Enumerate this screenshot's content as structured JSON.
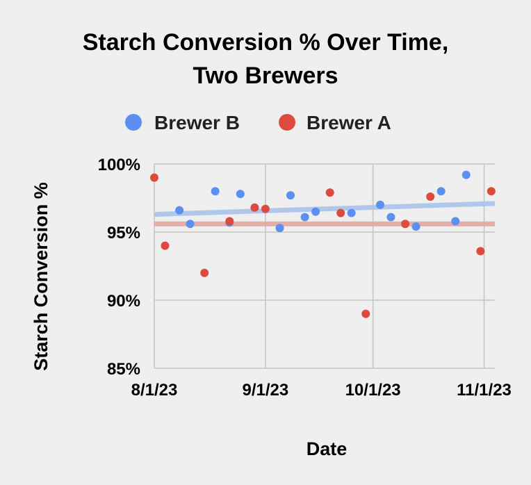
{
  "chart_data": {
    "type": "scatter",
    "title_lines": [
      "Starch Conversion % Over Time,",
      "Two Brewers"
    ],
    "xlabel": "Date",
    "ylabel": "Starch Conversion %",
    "xlim": [
      "2023-08-01",
      "2023-11-04"
    ],
    "ylim": [
      85,
      100
    ],
    "x_ticks": [
      {
        "date": "2023-08-01",
        "label": "8/1/23"
      },
      {
        "date": "2023-09-01",
        "label": "9/1/23"
      },
      {
        "date": "2023-10-01",
        "label": "10/1/23"
      },
      {
        "date": "2023-11-01",
        "label": "11/1/23"
      }
    ],
    "y_ticks": [
      {
        "value": 100,
        "label": "100%"
      },
      {
        "value": 95,
        "label": "95%"
      },
      {
        "value": 90,
        "label": "90%"
      },
      {
        "value": 85,
        "label": "85%"
      }
    ],
    "grid": true,
    "legend_position": "top",
    "series": [
      {
        "name": "Brewer B",
        "color": "#5b8ff0",
        "trendline_color": "#aac3ec",
        "trendline": [
          {
            "x": "2023-08-01",
            "y": 96.3
          },
          {
            "x": "2023-11-04",
            "y": 97.1
          }
        ],
        "points": [
          {
            "x": "2023-08-08",
            "y": 96.6
          },
          {
            "x": "2023-08-11",
            "y": 95.6
          },
          {
            "x": "2023-08-18",
            "y": 98.0
          },
          {
            "x": "2023-08-22",
            "y": 95.7
          },
          {
            "x": "2023-08-25",
            "y": 97.8
          },
          {
            "x": "2023-09-05",
            "y": 95.3
          },
          {
            "x": "2023-09-08",
            "y": 97.7
          },
          {
            "x": "2023-09-12",
            "y": 96.1
          },
          {
            "x": "2023-09-15",
            "y": 96.5
          },
          {
            "x": "2023-09-25",
            "y": 96.4
          },
          {
            "x": "2023-10-03",
            "y": 97.0
          },
          {
            "x": "2023-10-06",
            "y": 96.1
          },
          {
            "x": "2023-10-13",
            "y": 95.4
          },
          {
            "x": "2023-10-20",
            "y": 98.0
          },
          {
            "x": "2023-10-24",
            "y": 95.8
          },
          {
            "x": "2023-10-27",
            "y": 99.2
          }
        ]
      },
      {
        "name": "Brewer A",
        "color": "#dc4b3e",
        "trendline_color": "#e6a6a2",
        "trendline": [
          {
            "x": "2023-08-01",
            "y": 95.6
          },
          {
            "x": "2023-11-04",
            "y": 95.6
          }
        ],
        "points": [
          {
            "x": "2023-08-01",
            "y": 99.0
          },
          {
            "x": "2023-08-04",
            "y": 94.0
          },
          {
            "x": "2023-08-15",
            "y": 92.0
          },
          {
            "x": "2023-08-22",
            "y": 95.8
          },
          {
            "x": "2023-08-29",
            "y": 96.8
          },
          {
            "x": "2023-09-01",
            "y": 96.7
          },
          {
            "x": "2023-09-19",
            "y": 97.9
          },
          {
            "x": "2023-09-22",
            "y": 96.4
          },
          {
            "x": "2023-09-29",
            "y": 89.0
          },
          {
            "x": "2023-10-10",
            "y": 95.6
          },
          {
            "x": "2023-10-17",
            "y": 97.6
          },
          {
            "x": "2023-10-31",
            "y": 93.6
          },
          {
            "x": "2023-11-03",
            "y": 98.0
          }
        ]
      }
    ]
  }
}
